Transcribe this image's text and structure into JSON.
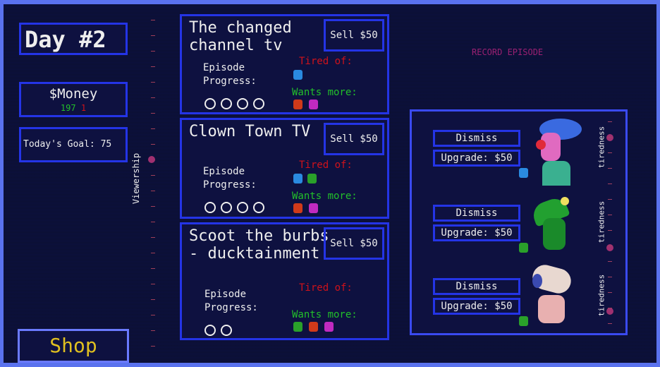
{
  "hud": {
    "day": "Day #2",
    "money_label": "$Money",
    "money_value": "197",
    "money_delta": "1",
    "goal": "Today's Goal: 75",
    "shop": "Shop",
    "viewership": "Viewership",
    "record": "RECORD EPISODE"
  },
  "shows": [
    {
      "title": "The changed channel tv",
      "sell": "Sell $50",
      "progress_label": "Episode Progress:",
      "progress_total": 4,
      "tired": "Tired of:",
      "tired_icons": [
        "blue-cube"
      ],
      "wants": "Wants more:",
      "wants_icons": [
        "red-cat",
        "pink-blob"
      ]
    },
    {
      "title": "Clown Town TV",
      "sell": "Sell $50",
      "progress_label": "Episode Progress:",
      "progress_total": 4,
      "tired": "Tired of:",
      "tired_icons": [
        "blue-cube",
        "green-dino"
      ],
      "wants": "Wants more:",
      "wants_icons": [
        "red-cat",
        "pink-blob"
      ]
    },
    {
      "title": "Scoot the burbs - ducktainment",
      "sell": "Sell $50",
      "progress_label": "Episode Progress:",
      "progress_total": 2,
      "tired": "Tired of:",
      "tired_icons": [],
      "wants": "Wants more:",
      "wants_icons": [
        "green-dino",
        "red-cat",
        "pink-blob"
      ]
    }
  ],
  "staff": [
    {
      "character": "clown",
      "dismiss": "Dismiss",
      "upgrade": "Upgrade: $50",
      "icon": "blue-cube",
      "tiredness_label": "tiredness"
    },
    {
      "character": "green-dino",
      "dismiss": "Dismiss",
      "upgrade": "Upgrade: $50",
      "icon": "green-dino",
      "tiredness_label": "tiredness"
    },
    {
      "character": "dog",
      "dismiss": "Dismiss",
      "upgrade": "Upgrade: $50",
      "icon": "green-dino",
      "tiredness_label": "tiredness"
    }
  ],
  "colors": {
    "frame": "#5a72ee",
    "panel_border": "#2434e6",
    "background": "#0e1240",
    "tired": "#d0121a",
    "wants": "#22c02a",
    "shop_text": "#e0c020"
  }
}
